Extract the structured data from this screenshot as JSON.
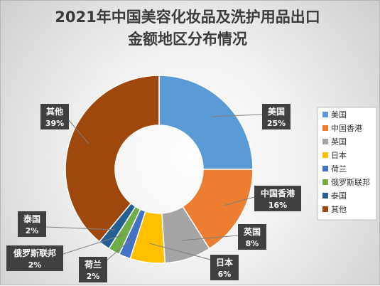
{
  "chart_data": {
    "type": "pie",
    "variant": "doughnut",
    "title": "2021年中国美容化妆品及洗护用品出口金额地区分布情况",
    "title_lines": [
      "2021年中国美容化妆品及洗护用品出口",
      "金额地区分布情况"
    ],
    "legend_position": "right",
    "categories": [
      "美国",
      "中国香港",
      "英国",
      "日本",
      "荷兰",
      "俄罗斯联邦",
      "泰国",
      "其他"
    ],
    "values": [
      25,
      16,
      8,
      6,
      2,
      2,
      2,
      39
    ],
    "unit": "%",
    "data_labels": [
      "25%",
      "16%",
      "8%",
      "6%",
      "2%",
      "2%",
      "2%",
      "39%"
    ],
    "colors": [
      "#5b9bd5",
      "#ed7d31",
      "#a5a5a5",
      "#ffc000",
      "#4472c4",
      "#70ad47",
      "#255e91",
      "#9e480e"
    ]
  }
}
